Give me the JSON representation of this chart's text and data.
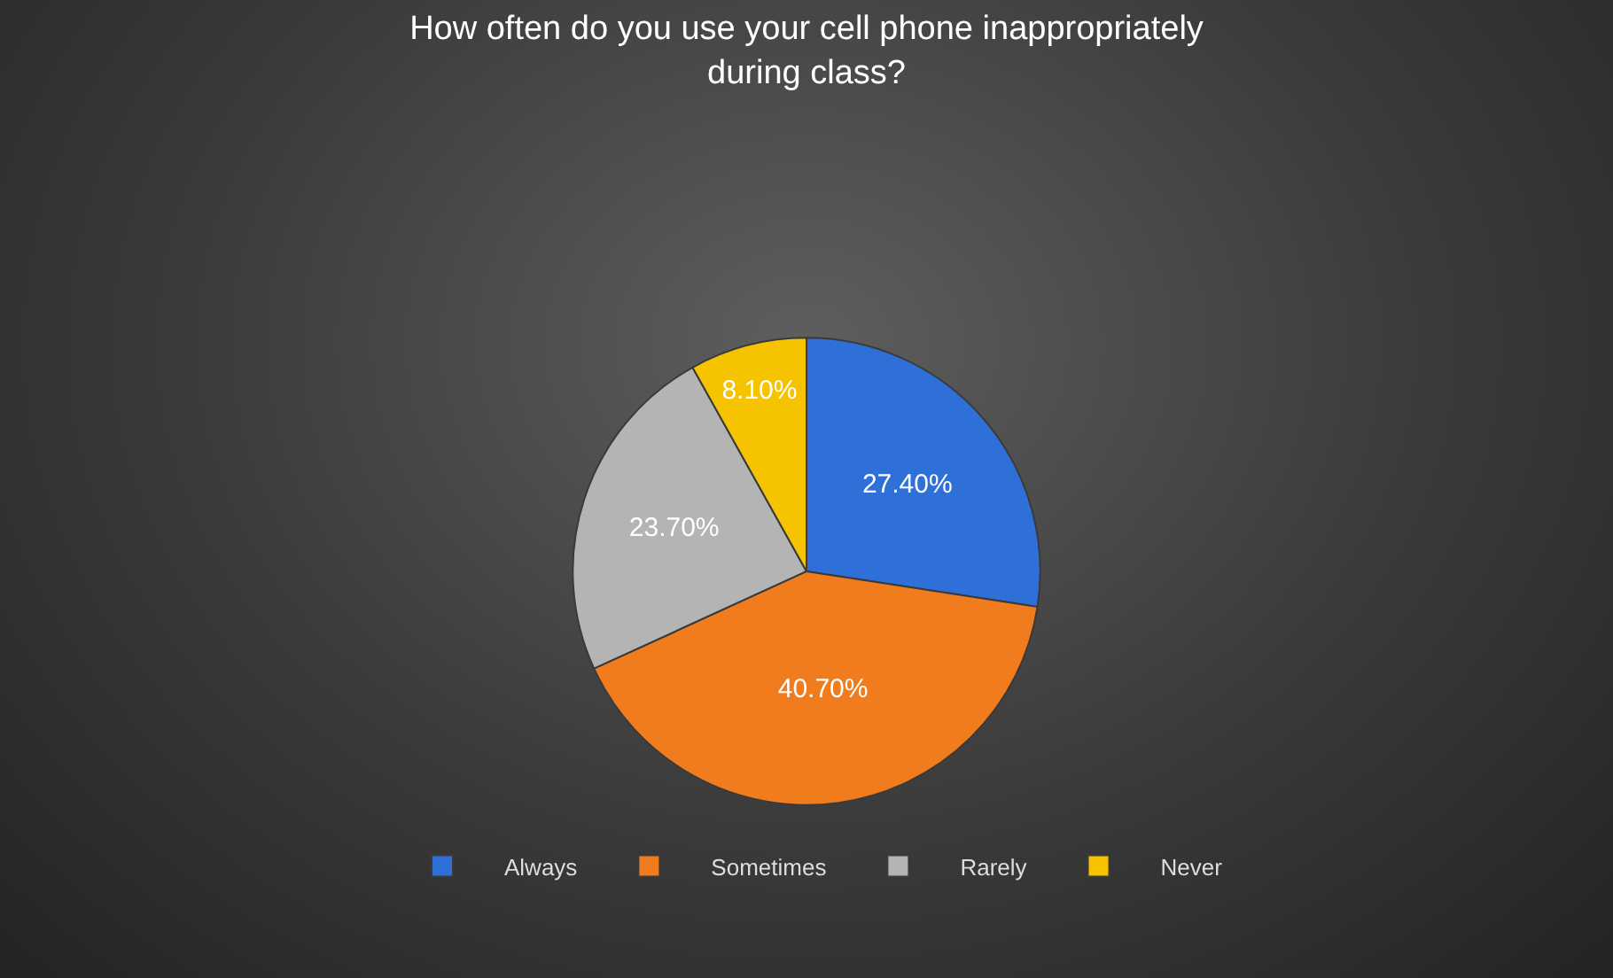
{
  "chart_data": {
    "type": "pie",
    "title": "How often do you use your cell phone inappropriately during class?",
    "categories": [
      "Always",
      "Sometimes",
      "Rarely",
      "Never"
    ],
    "values": [
      27.4,
      40.7,
      23.7,
      8.1
    ],
    "value_labels": [
      "27.40%",
      "40.70%",
      "23.70%",
      "8.10%"
    ],
    "colors": [
      "#2f6fd8",
      "#f07c1e",
      "#b4b4b4",
      "#f5c300"
    ],
    "legend": "bottom"
  }
}
